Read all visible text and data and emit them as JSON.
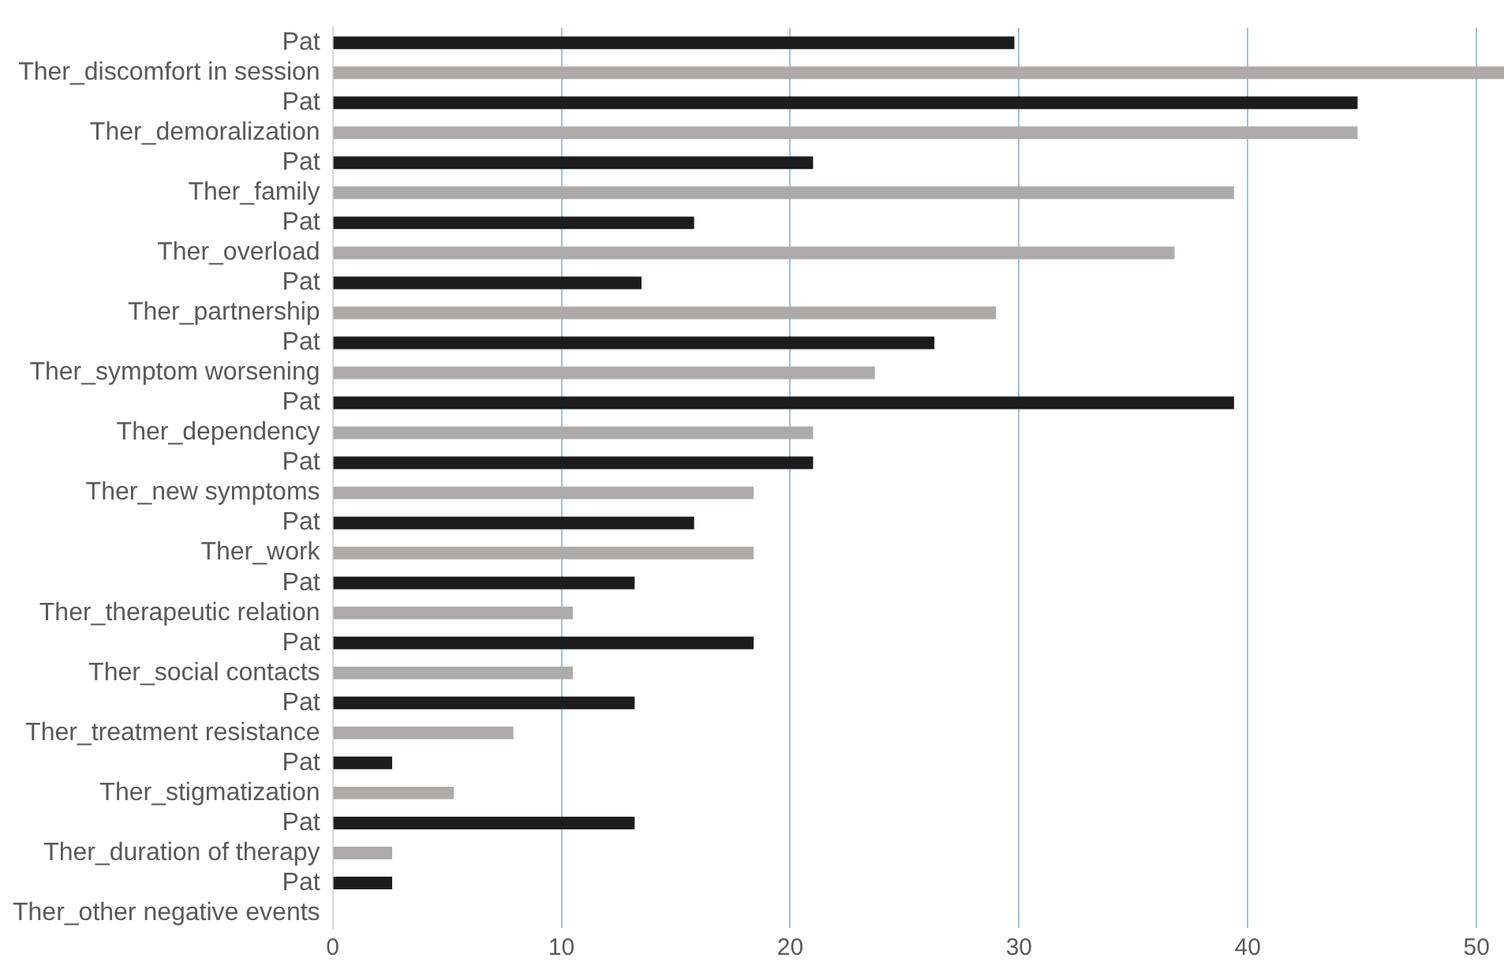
{
  "chart_data": {
    "type": "bar",
    "orientation": "horizontal",
    "categories": [
      "Pat",
      "Ther_discomfort in session",
      "Pat",
      "Ther_demoralization",
      "Pat",
      "Ther_family",
      "Pat",
      "Ther_overload",
      "Pat",
      "Ther_partnership",
      "Pat",
      "Ther_symptom worsening",
      "Pat",
      "Ther_dependency",
      "Pat",
      "Ther_new symptoms",
      "Pat",
      "Ther_work",
      "Pat",
      "Ther_therapeutic relation",
      "Pat",
      "Ther_social contacts",
      "Pat",
      "Ther_treatment resistance",
      "Pat",
      "Ther_stigmatization",
      "Pat",
      "Ther_duration of therapy",
      "Pat",
      "Ther_other negative events"
    ],
    "values": [
      29.8,
      51.2,
      44.8,
      44.8,
      21.0,
      39.4,
      15.8,
      36.8,
      13.5,
      29.0,
      26.3,
      23.7,
      39.4,
      21.0,
      21.0,
      18.4,
      15.8,
      18.4,
      13.2,
      10.5,
      18.4,
      10.5,
      13.2,
      7.9,
      2.6,
      5.3,
      13.2,
      2.6,
      2.6,
      0
    ],
    "colors": [
      "#1c1c1c",
      "#aeaaaa",
      "#1c1c1c",
      "#aeaaaa",
      "#1c1c1c",
      "#aeaaaa",
      "#1c1c1c",
      "#aeaaaa",
      "#1c1c1c",
      "#aeaaaa",
      "#1c1c1c",
      "#aeaaaa",
      "#1c1c1c",
      "#aeaaaa",
      "#1c1c1c",
      "#aeaaaa",
      "#1c1c1c",
      "#aeaaaa",
      "#1c1c1c",
      "#aeaaaa",
      "#1c1c1c",
      "#aeaaaa",
      "#1c1c1c",
      "#aeaaaa",
      "#1c1c1c",
      "#aeaaaa",
      "#1c1c1c",
      "#aeaaaa",
      "#1c1c1c",
      "#aeaaaa"
    ],
    "xlim": [
      0,
      51.2
    ],
    "xticks": [
      0,
      10,
      20,
      30,
      40,
      50
    ],
    "grid": "x",
    "legend": false
  }
}
